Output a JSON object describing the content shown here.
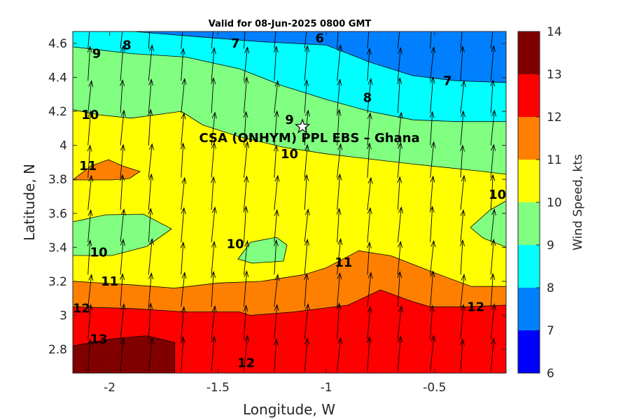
{
  "chart_data": {
    "type": "contour",
    "title": "Valid for 08-Jun-2025 0800 GMT",
    "xlabel": "Longitude, W",
    "ylabel": "Latitude, N",
    "xlim": [
      -2.17,
      -0.17
    ],
    "ylim": [
      2.66,
      4.67
    ],
    "xticks": [
      -2,
      -1.5,
      -1,
      -0.5
    ],
    "xtick_labels": [
      "-2",
      "-1.5",
      "-1",
      "-0.5"
    ],
    "yticks": [
      2.8,
      3.0,
      3.2,
      3.4,
      3.6,
      3.8,
      4.0,
      4.2,
      4.4,
      4.6
    ],
    "ytick_labels": [
      "2.8",
      "3",
      "3.2",
      "3.4",
      "3.6",
      "3.8",
      "4",
      "4.2",
      "4.4",
      "4.6"
    ],
    "colorbar": {
      "label": "Wind Speed, kts",
      "min": 6,
      "max": 14,
      "ticks": [
        6,
        7,
        8,
        9,
        10,
        11,
        12,
        13,
        14
      ],
      "tick_labels": [
        "6",
        "7",
        "8",
        "9",
        "10",
        "11",
        "12",
        "13",
        "14"
      ],
      "colors": [
        "#0000ff",
        "#0080ff",
        "#00ffff",
        "#80ff80",
        "#ffff00",
        "#ff8000",
        "#ff0000",
        "#800000"
      ]
    },
    "levels": [
      {
        "value": 6,
        "color": "#0000ff",
        "boundary": []
      },
      {
        "value": 7,
        "color": "#0080ff",
        "boundary": [
          [
            -2.17,
            4.67
          ],
          [
            -0.17,
            4.67
          ]
        ]
      },
      {
        "value": 8,
        "color": "#00ffff",
        "boundary": [
          [
            -2.17,
            4.67
          ],
          [
            -1.89,
            4.67
          ],
          [
            -1.6,
            4.64
          ],
          [
            -1.3,
            4.61
          ],
          [
            -1.0,
            4.59
          ],
          [
            -0.8,
            4.49
          ],
          [
            -0.6,
            4.41
          ],
          [
            -0.4,
            4.38
          ],
          [
            -0.17,
            4.37
          ]
        ]
      },
      {
        "value": 9,
        "color": "#80ff80",
        "boundary": [
          [
            -2.17,
            4.58
          ],
          [
            -1.9,
            4.54
          ],
          [
            -1.65,
            4.52
          ],
          [
            -1.4,
            4.45
          ],
          [
            -1.2,
            4.35
          ],
          [
            -1.0,
            4.27
          ],
          [
            -0.8,
            4.2
          ],
          [
            -0.6,
            4.15
          ],
          [
            -0.4,
            4.14
          ],
          [
            -0.17,
            4.14
          ]
        ]
      },
      {
        "value": 10,
        "color": "#ffff00",
        "boundary": [
          [
            -2.17,
            4.21
          ],
          [
            -2.05,
            4.18
          ],
          [
            -1.9,
            4.16
          ],
          [
            -1.67,
            4.2
          ],
          [
            -1.57,
            4.12
          ],
          [
            -1.4,
            4.05
          ],
          [
            -1.2,
            3.99
          ],
          [
            -1.0,
            3.95
          ],
          [
            -0.8,
            3.92
          ],
          [
            -0.6,
            3.89
          ],
          [
            -0.45,
            3.87
          ],
          [
            -0.3,
            3.85
          ],
          [
            -0.17,
            3.83
          ]
        ]
      },
      {
        "value": 11,
        "color": "#ff8000",
        "boundary": [
          [
            -2.17,
            3.2
          ],
          [
            -1.9,
            3.18
          ],
          [
            -1.7,
            3.16
          ],
          [
            -1.5,
            3.19
          ],
          [
            -1.3,
            3.2
          ],
          [
            -1.1,
            3.24
          ],
          [
            -1.0,
            3.28
          ],
          [
            -0.85,
            3.38
          ],
          [
            -0.7,
            3.35
          ],
          [
            -0.5,
            3.25
          ],
          [
            -0.33,
            3.17
          ],
          [
            -0.17,
            3.17
          ]
        ]
      },
      {
        "value": 12,
        "color": "#ff0000",
        "boundary": [
          [
            -2.17,
            3.05
          ],
          [
            -1.9,
            3.04
          ],
          [
            -1.65,
            3.02
          ],
          [
            -1.4,
            3.02
          ],
          [
            -1.35,
            3.0
          ],
          [
            -1.15,
            3.02
          ],
          [
            -0.9,
            3.06
          ],
          [
            -0.75,
            3.15
          ],
          [
            -0.6,
            3.08
          ],
          [
            -0.52,
            3.05
          ],
          [
            -0.35,
            3.05
          ],
          [
            -0.17,
            3.06
          ]
        ]
      },
      {
        "value": 13,
        "color": "#800000",
        "boundary": [
          [
            -2.17,
            2.82
          ],
          [
            -2.0,
            2.86
          ],
          [
            -1.83,
            2.88
          ],
          [
            -1.7,
            2.84
          ],
          [
            -1.7,
            2.66
          ],
          [
            -2.17,
            2.66
          ]
        ]
      }
    ],
    "contour_labels": [
      {
        "text": "6",
        "x": -1.03,
        "y": 4.63
      },
      {
        "text": "7",
        "x": -1.42,
        "y": 4.6
      },
      {
        "text": "8",
        "x": -1.92,
        "y": 4.59
      },
      {
        "text": "9",
        "x": -2.06,
        "y": 4.54
      },
      {
        "text": "7",
        "x": -0.44,
        "y": 4.38
      },
      {
        "text": "8",
        "x": -0.81,
        "y": 4.28
      },
      {
        "text": "9",
        "x": -1.17,
        "y": 4.15
      },
      {
        "text": "10",
        "x": -2.09,
        "y": 4.18
      },
      {
        "text": "10",
        "x": -1.17,
        "y": 3.95
      },
      {
        "text": "11",
        "x": -2.1,
        "y": 3.88
      },
      {
        "text": "10",
        "x": -0.21,
        "y": 3.71
      },
      {
        "text": "10",
        "x": -1.42,
        "y": 3.42
      },
      {
        "text": "10",
        "x": -2.05,
        "y": 3.37
      },
      {
        "text": "11",
        "x": -0.92,
        "y": 3.31
      },
      {
        "text": "11",
        "x": -2.0,
        "y": 3.2
      },
      {
        "text": "12",
        "x": -2.13,
        "y": 3.04
      },
      {
        "text": "12",
        "x": -0.31,
        "y": 3.05
      },
      {
        "text": "13",
        "x": -2.05,
        "y": 2.86
      },
      {
        "text": "12",
        "x": -1.37,
        "y": 2.72
      }
    ],
    "site": {
      "label": "CSA (ONHYM) PPL EBS  – Ghana",
      "x": -1.11,
      "y": 4.11,
      "marker": "star"
    },
    "wind_vector_grid": {
      "x": [
        -2.1,
        -1.95,
        -1.82,
        -1.67,
        -1.53,
        -1.38,
        -1.24,
        -1.1,
        -0.95,
        -0.81,
        -0.67,
        -0.52,
        -0.38,
        -0.24
      ],
      "y": [
        2.67,
        2.86,
        3.05,
        3.24,
        3.43,
        3.62,
        3.81,
        4.0,
        4.19,
        4.38,
        4.57
      ],
      "direction": "northward with slight northeast lean"
    }
  }
}
